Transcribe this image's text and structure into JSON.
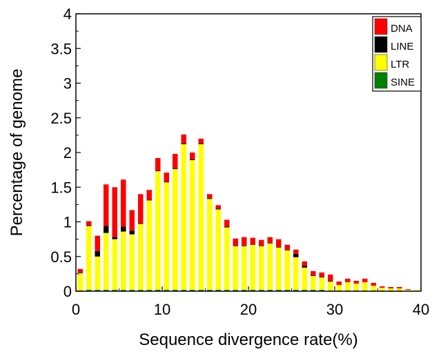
{
  "chart_data": {
    "type": "bar",
    "stacked": true,
    "xlabel": "Sequence divergence rate(%)",
    "ylabel": "Percentage of genome",
    "xlim": [
      0,
      40
    ],
    "ylim": [
      0,
      4
    ],
    "x_ticks": [
      "0",
      "10",
      "20",
      "30",
      "40"
    ],
    "y_ticks": [
      "0",
      "0.5",
      "1",
      "1.5",
      "2",
      "2.5",
      "3",
      "3.5",
      "4"
    ],
    "grid": false,
    "legend_position": "top-right",
    "x": [
      0.5,
      1.5,
      2.5,
      3.5,
      4.5,
      5.5,
      6.5,
      7.5,
      8.5,
      9.5,
      10.5,
      11.5,
      12.5,
      13.5,
      14.5,
      15.5,
      16.5,
      17.5,
      18.5,
      19.5,
      20.5,
      21.5,
      22.5,
      23.5,
      24.5,
      25.5,
      26.5,
      27.5,
      28.5,
      29.5,
      30.5,
      31.5,
      32.5,
      33.5,
      34.5,
      35.5,
      36.5,
      37.5,
      38.5,
      39.5
    ],
    "series": [
      {
        "name": "SINE",
        "color": "#008000",
        "values": [
          0.01,
          0.02,
          0.02,
          0.02,
          0.02,
          0.02,
          0.02,
          0.02,
          0.02,
          0.02,
          0.02,
          0.02,
          0.02,
          0.02,
          0.02,
          0.02,
          0.02,
          0.02,
          0.02,
          0.02,
          0.02,
          0.02,
          0.02,
          0.02,
          0.02,
          0.02,
          0.02,
          0.02,
          0.02,
          0.01,
          0.01,
          0.01,
          0.01,
          0.01,
          0.01,
          0.01,
          0.01,
          0.01,
          0.0,
          0.0
        ]
      },
      {
        "name": "LTR",
        "color": "#ffff00",
        "values": [
          0.25,
          0.92,
          0.48,
          0.82,
          0.73,
          0.84,
          0.8,
          0.95,
          1.29,
          1.71,
          1.55,
          1.74,
          2.1,
          1.87,
          2.1,
          1.31,
          1.16,
          0.9,
          0.63,
          0.63,
          0.65,
          0.63,
          0.67,
          0.61,
          0.57,
          0.47,
          0.32,
          0.2,
          0.18,
          0.13,
          0.08,
          0.12,
          0.1,
          0.12,
          0.07,
          0.04,
          0.03,
          0.03,
          0.02,
          0.02
        ]
      },
      {
        "name": "LINE",
        "color": "#000000",
        "values": [
          0.01,
          0.01,
          0.08,
          0.1,
          0.03,
          0.07,
          0.05,
          0.01,
          0.01,
          0.01,
          0.01,
          0.01,
          0.01,
          0.01,
          0.01,
          0.01,
          0.01,
          0.01,
          0.01,
          0.01,
          0.01,
          0.01,
          0.01,
          0.01,
          0.01,
          0.05,
          0.03,
          0.01,
          0.01,
          0.01,
          0.0,
          0.0,
          0.0,
          0.0,
          0.0,
          0.0,
          0.0,
          0.0,
          0.0,
          0.0
        ]
      },
      {
        "name": "DNA",
        "color": "#ff0000",
        "values": [
          0.05,
          0.06,
          0.22,
          0.6,
          0.72,
          0.68,
          0.3,
          0.42,
          0.14,
          0.18,
          0.13,
          0.21,
          0.13,
          0.1,
          0.07,
          0.06,
          0.05,
          0.1,
          0.1,
          0.12,
          0.09,
          0.08,
          0.08,
          0.11,
          0.07,
          0.06,
          0.06,
          0.06,
          0.06,
          0.09,
          0.05,
          0.05,
          0.04,
          0.05,
          0.04,
          0.02,
          0.02,
          0.02,
          0.01,
          0.0
        ]
      }
    ],
    "legend": [
      "DNA",
      "LINE",
      "LTR",
      "SINE"
    ]
  }
}
